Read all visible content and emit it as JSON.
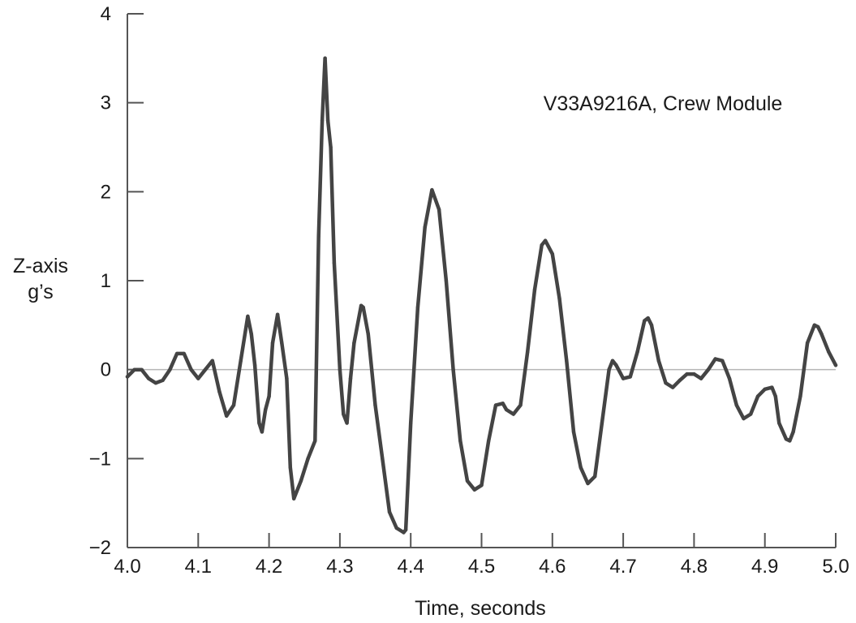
{
  "chart_data": {
    "type": "line",
    "title": "",
    "annotation": "V33A9216A, Crew Module",
    "xlabel": "Time, seconds",
    "ylabel_lines": [
      "Z-axis",
      "g’s"
    ],
    "xlim": [
      4.0,
      5.0
    ],
    "ylim": [
      -2,
      4
    ],
    "x_ticks": [
      4.0,
      4.1,
      4.2,
      4.3,
      4.4,
      4.5,
      4.6,
      4.7,
      4.8,
      4.9,
      5.0
    ],
    "x_tick_labels": [
      "4.0",
      "4.1",
      "4.2",
      "4.3",
      "4.4",
      "4.5",
      "4.6",
      "4.7",
      "4.8",
      "4.9",
      "5.0"
    ],
    "y_ticks": [
      -2,
      -1,
      0,
      1,
      2,
      3,
      4
    ],
    "y_tick_labels": [
      "−2",
      "−1",
      "0",
      "1",
      "2",
      "3",
      "4"
    ],
    "zero_line": true,
    "grid": false,
    "line_color": "#444444",
    "zero_line_color": "#b5b5b5",
    "series": [
      {
        "x": [
          4.0,
          4.01,
          4.02,
          4.03,
          4.04,
          4.05,
          4.06,
          4.07,
          4.08,
          4.09,
          4.1,
          4.11,
          4.12,
          4.13,
          4.14,
          4.15,
          4.16,
          4.17,
          4.175,
          4.18,
          4.186,
          4.19,
          4.195,
          4.2,
          4.205,
          4.212,
          4.218,
          4.225,
          4.23,
          4.235,
          4.245,
          4.255,
          4.265,
          4.27,
          4.275,
          4.279,
          4.283,
          4.287,
          4.292,
          4.3,
          4.305,
          4.31,
          4.315,
          4.32,
          4.33,
          4.333,
          4.34,
          4.35,
          4.36,
          4.37,
          4.38,
          4.39,
          4.393,
          4.4,
          4.41,
          4.42,
          4.43,
          4.44,
          4.45,
          4.46,
          4.47,
          4.48,
          4.49,
          4.5,
          4.51,
          4.52,
          4.53,
          4.535,
          4.545,
          4.555,
          4.565,
          4.575,
          4.585,
          4.59,
          4.6,
          4.61,
          4.62,
          4.63,
          4.64,
          4.65,
          4.66,
          4.67,
          4.68,
          4.685,
          4.69,
          4.7,
          4.71,
          4.72,
          4.73,
          4.735,
          4.74,
          4.75,
          4.76,
          4.77,
          4.78,
          4.79,
          4.8,
          4.81,
          4.82,
          4.83,
          4.84,
          4.845,
          4.85,
          4.86,
          4.87,
          4.88,
          4.89,
          4.9,
          4.91,
          4.915,
          4.92,
          4.93,
          4.935,
          4.94,
          4.95,
          4.96,
          4.97,
          4.975,
          4.98,
          4.99,
          5.0
        ],
        "y": [
          -0.08,
          0.0,
          0.0,
          -0.1,
          -0.15,
          -0.12,
          0.0,
          0.18,
          0.18,
          0.0,
          -0.1,
          0.0,
          0.1,
          -0.25,
          -0.52,
          -0.4,
          0.1,
          0.6,
          0.4,
          0.05,
          -0.6,
          -0.7,
          -0.45,
          -0.3,
          0.3,
          0.62,
          0.3,
          -0.1,
          -1.1,
          -1.45,
          -1.25,
          -1.0,
          -0.8,
          1.5,
          2.8,
          3.5,
          2.8,
          2.5,
          1.2,
          0.0,
          -0.5,
          -0.6,
          -0.1,
          0.3,
          0.72,
          0.7,
          0.4,
          -0.4,
          -1.0,
          -1.6,
          -1.78,
          -1.83,
          -1.8,
          -0.6,
          0.7,
          1.6,
          2.02,
          1.8,
          1.0,
          0.0,
          -0.8,
          -1.25,
          -1.35,
          -1.3,
          -0.8,
          -0.4,
          -0.38,
          -0.45,
          -0.5,
          -0.4,
          0.2,
          0.9,
          1.4,
          1.45,
          1.3,
          0.8,
          0.1,
          -0.7,
          -1.1,
          -1.28,
          -1.2,
          -0.6,
          0.0,
          0.1,
          0.05,
          -0.1,
          -0.08,
          0.2,
          0.55,
          0.58,
          0.5,
          0.1,
          -0.15,
          -0.2,
          -0.12,
          -0.05,
          -0.05,
          -0.1,
          0.0,
          0.12,
          0.1,
          0.0,
          -0.1,
          -0.4,
          -0.55,
          -0.5,
          -0.3,
          -0.22,
          -0.2,
          -0.3,
          -0.6,
          -0.78,
          -0.8,
          -0.7,
          -0.3,
          0.3,
          0.5,
          0.48,
          0.4,
          0.2,
          0.05
        ]
      }
    ]
  }
}
